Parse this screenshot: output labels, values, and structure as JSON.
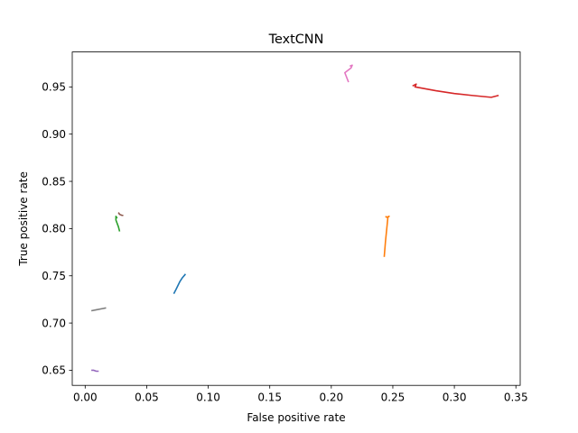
{
  "chart_data": {
    "type": "line",
    "title": "TextCNN",
    "xlabel": "False positive rate",
    "ylabel": "True positive rate",
    "xlim": [
      -0.0105,
      0.3535
    ],
    "ylim": [
      0.634,
      0.987
    ],
    "xticks": [
      0.0,
      0.05,
      0.1,
      0.15,
      0.2,
      0.25,
      0.3,
      0.35
    ],
    "xtick_labels": [
      "0.00",
      "0.05",
      "0.10",
      "0.15",
      "0.20",
      "0.25",
      "0.30",
      "0.35"
    ],
    "yticks": [
      0.65,
      0.7,
      0.75,
      0.8,
      0.85,
      0.9,
      0.95
    ],
    "ytick_labels": [
      "0.65",
      "0.70",
      "0.75",
      "0.80",
      "0.85",
      "0.90",
      "0.95"
    ],
    "grid": false,
    "series": [
      {
        "color": "#1f77b4",
        "points": [
          [
            0.072,
            0.731
          ],
          [
            0.074,
            0.736
          ],
          [
            0.077,
            0.744
          ],
          [
            0.079,
            0.748
          ],
          [
            0.081,
            0.751
          ],
          [
            0.0815,
            0.752
          ]
        ]
      },
      {
        "color": "#ff7f0e",
        "points": [
          [
            0.243,
            0.77
          ],
          [
            0.244,
            0.786
          ],
          [
            0.246,
            0.812
          ],
          [
            0.247,
            0.813
          ],
          [
            0.245,
            0.812
          ],
          [
            0.244,
            0.813
          ]
        ]
      },
      {
        "color": "#2ca02c",
        "points": [
          [
            0.028,
            0.797
          ],
          [
            0.027,
            0.802
          ],
          [
            0.025,
            0.809
          ],
          [
            0.025,
            0.813
          ],
          [
            0.026,
            0.811
          ]
        ]
      },
      {
        "color": "#d62728",
        "points": [
          [
            0.266,
            0.951
          ],
          [
            0.269,
            0.953
          ],
          [
            0.268,
            0.95
          ],
          [
            0.285,
            0.946
          ],
          [
            0.3,
            0.943
          ],
          [
            0.314,
            0.941
          ],
          [
            0.33,
            0.939
          ],
          [
            0.336,
            0.941
          ]
        ]
      },
      {
        "color": "#9467bd",
        "points": [
          [
            0.005,
            0.65
          ],
          [
            0.007,
            0.65
          ],
          [
            0.009,
            0.649
          ],
          [
            0.011,
            0.649
          ]
        ]
      },
      {
        "color": "#8c564b",
        "points": [
          [
            0.027,
            0.817
          ],
          [
            0.028,
            0.815
          ],
          [
            0.03,
            0.814
          ],
          [
            0.031,
            0.814
          ]
        ]
      },
      {
        "color": "#e377c2",
        "points": [
          [
            0.214,
            0.955
          ],
          [
            0.211,
            0.965
          ],
          [
            0.216,
            0.97
          ],
          [
            0.217,
            0.973
          ],
          [
            0.215,
            0.972
          ]
        ]
      },
      {
        "color": "#7f7f7f",
        "points": [
          [
            0.005,
            0.713
          ],
          [
            0.009,
            0.714
          ],
          [
            0.013,
            0.715
          ],
          [
            0.017,
            0.716
          ]
        ]
      }
    ]
  }
}
